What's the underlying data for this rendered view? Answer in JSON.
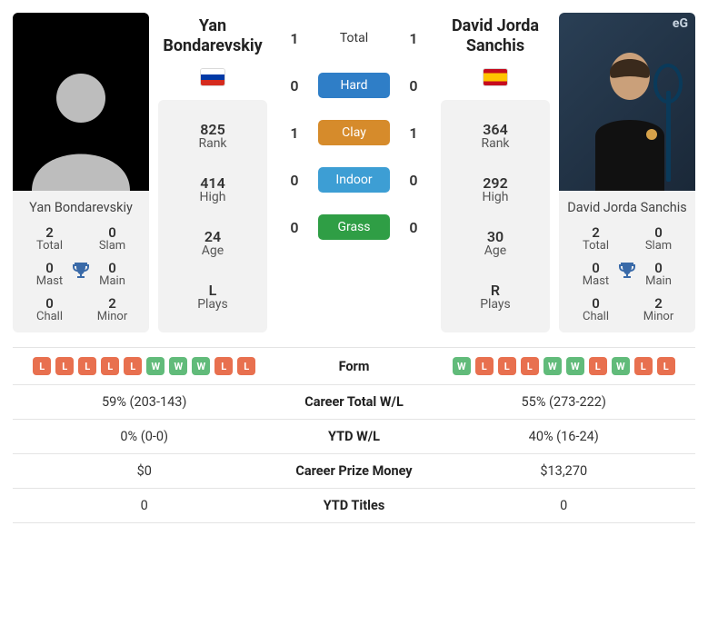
{
  "colors": {
    "card_bg": "#f2f2f2",
    "text": "#333333",
    "form_win": "#61bb7a",
    "form_loss": "#e8704f",
    "trophy": "#3a6aa8"
  },
  "surfaces": {
    "hard": {
      "label": "Hard",
      "color": "#2f7ec7",
      "p1": 0,
      "p2": 0
    },
    "clay": {
      "label": "Clay",
      "color": "#d68b2b",
      "p1": 1,
      "p2": 1
    },
    "indoor": {
      "label": "Indoor",
      "color": "#3d9ed4",
      "p1": 0,
      "p2": 0
    },
    "grass": {
      "label": "Grass",
      "color": "#2f9e45",
      "p1": 0,
      "p2": 0
    }
  },
  "h2h_total": {
    "label": "Total",
    "p1": 1,
    "p2": 1
  },
  "p1": {
    "name_block": "Yan\nBondarevskiy",
    "name_inline": "Yan Bondarevskiy",
    "flag": "ru",
    "rank": "825",
    "high": "414",
    "age": "24",
    "plays": "L",
    "titles": {
      "total": "2",
      "slam": "0",
      "mast": "0",
      "main": "0",
      "chall": "0",
      "minor": "2"
    },
    "form": [
      "L",
      "L",
      "L",
      "L",
      "L",
      "W",
      "W",
      "W",
      "L",
      "L"
    ],
    "career_wl": "59% (203-143)",
    "ytd_wl": "0% (0-0)",
    "prize": "$0",
    "ytd_titles": "0"
  },
  "p2": {
    "name_block": "David Jorda\nSanchis",
    "name_inline": "David Jorda Sanchis",
    "flag": "es",
    "rank": "364",
    "high": "292",
    "age": "30",
    "plays": "R",
    "titles": {
      "total": "2",
      "slam": "0",
      "mast": "0",
      "main": "0",
      "chall": "0",
      "minor": "2"
    },
    "form": [
      "W",
      "L",
      "L",
      "L",
      "W",
      "W",
      "L",
      "W",
      "L",
      "L"
    ],
    "career_wl": "55% (273-222)",
    "ytd_wl": "40% (16-24)",
    "prize": "$13,270",
    "ytd_titles": "0"
  },
  "cmp_labels": {
    "form": "Form",
    "career_wl": "Career Total W/L",
    "ytd_wl": "YTD W/L",
    "prize": "Career Prize Money",
    "ytd_titles": "YTD Titles"
  },
  "stat_labels": {
    "rank": "Rank",
    "high": "High",
    "age": "Age",
    "plays": "Plays",
    "total": "Total",
    "slam": "Slam",
    "mast": "Mast",
    "main": "Main",
    "chall": "Chall",
    "minor": "Minor"
  }
}
